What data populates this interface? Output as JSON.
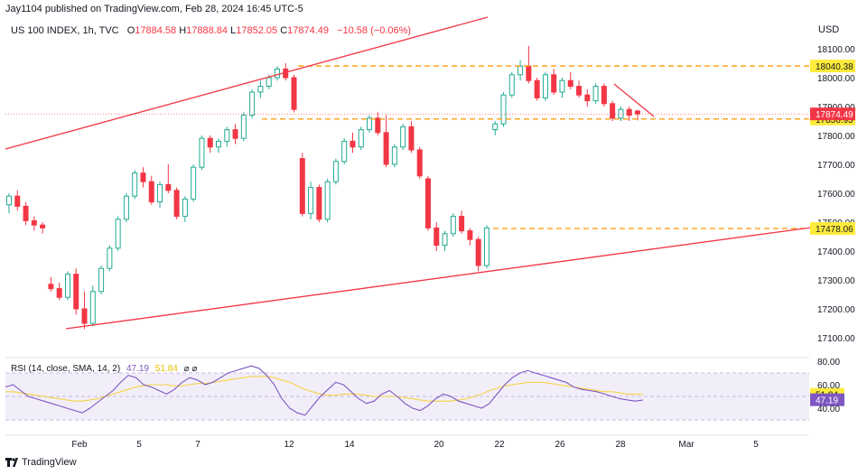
{
  "header": {
    "publisher": "Jay1104 published on TradingView.com, Feb 28, 2024 16:45 UTC-5",
    "symbol": "US 100 INDEX, 1h, TVC",
    "open_label": "O",
    "open": "17884.58",
    "high_label": "H",
    "high": "17888.84",
    "low_label": "L",
    "low": "17852.05",
    "close_label": "C",
    "close": "17874.49",
    "change": "−10.58 (−0.06%)"
  },
  "currency": "USD",
  "rsi_legend": {
    "label": "RSI (14, close, SMA, 14, 2)",
    "rsi_value": "47.19",
    "sma_value": "51.84",
    "icons": "⌀ ⌀"
  },
  "footer": {
    "brand": "TradingView"
  },
  "colors": {
    "up": "#22ab94",
    "down": "#f23645",
    "trend": "#f23645",
    "level": "#ff9800",
    "rsi": "#7e57c2",
    "rsi_ma": "#f7d245",
    "price_tag": "#f23645",
    "level_tag": "#ffeb3b"
  },
  "chart_data": {
    "type": "candlestick",
    "timeframe": "1h",
    "x_tick_labels": [
      "Feb",
      "5",
      "7",
      "12",
      "14",
      "20",
      "22",
      "26",
      "28",
      "Mar",
      "5"
    ],
    "y_ticks": [
      "18100.00",
      "18000.00",
      "17900.00",
      "17800.00",
      "17700.00",
      "17600.00",
      "17500.00",
      "17400.00",
      "17300.00",
      "17200.00",
      "17100.00"
    ],
    "ylim": [
      17050,
      18170
    ],
    "last_price": 17874.49,
    "candles_ohlc": [
      [
        17560,
        17600,
        17530,
        17590
      ],
      [
        17590,
        17610,
        17540,
        17555
      ],
      [
        17555,
        17570,
        17490,
        17505
      ],
      [
        17505,
        17520,
        17470,
        17490
      ],
      [
        17490,
        17500,
        17460,
        17480
      ],
      [
        17285,
        17310,
        17260,
        17270
      ],
      [
        17270,
        17290,
        17230,
        17240
      ],
      [
        17240,
        17330,
        17230,
        17320
      ],
      [
        17320,
        17340,
        17180,
        17200
      ],
      [
        17200,
        17260,
        17130,
        17150
      ],
      [
        17150,
        17280,
        17140,
        17260
      ],
      [
        17260,
        17350,
        17250,
        17340
      ],
      [
        17340,
        17420,
        17330,
        17410
      ],
      [
        17410,
        17520,
        17400,
        17510
      ],
      [
        17510,
        17600,
        17500,
        17590
      ],
      [
        17590,
        17680,
        17580,
        17670
      ],
      [
        17670,
        17690,
        17620,
        17640
      ],
      [
        17640,
        17660,
        17560,
        17570
      ],
      [
        17570,
        17640,
        17550,
        17630
      ],
      [
        17630,
        17700,
        17600,
        17610
      ],
      [
        17610,
        17620,
        17510,
        17520
      ],
      [
        17520,
        17590,
        17500,
        17580
      ],
      [
        17580,
        17700,
        17570,
        17690
      ],
      [
        17690,
        17800,
        17680,
        17790
      ],
      [
        17790,
        17800,
        17740,
        17760
      ],
      [
        17760,
        17790,
        17740,
        17780
      ],
      [
        17780,
        17830,
        17760,
        17820
      ],
      [
        17820,
        17840,
        17770,
        17790
      ],
      [
        17790,
        17880,
        17780,
        17870
      ],
      [
        17870,
        17960,
        17860,
        17950
      ],
      [
        17950,
        17990,
        17930,
        17970
      ],
      [
        17970,
        18010,
        17960,
        18000
      ],
      [
        18000,
        18040,
        17990,
        18030
      ],
      [
        18030,
        18050,
        17990,
        18000
      ],
      [
        18000,
        18010,
        17880,
        17890
      ],
      [
        17720,
        17740,
        17520,
        17530
      ],
      [
        17530,
        17640,
        17510,
        17620
      ],
      [
        17620,
        17630,
        17500,
        17510
      ],
      [
        17510,
        17650,
        17500,
        17640
      ],
      [
        17640,
        17720,
        17630,
        17710
      ],
      [
        17710,
        17790,
        17700,
        17780
      ],
      [
        17780,
        17810,
        17740,
        17760
      ],
      [
        17760,
        17830,
        17750,
        17820
      ],
      [
        17820,
        17870,
        17810,
        17860
      ],
      [
        17860,
        17880,
        17800,
        17810
      ],
      [
        17810,
        17870,
        17690,
        17700
      ],
      [
        17700,
        17770,
        17690,
        17760
      ],
      [
        17760,
        17840,
        17750,
        17830
      ],
      [
        17830,
        17850,
        17740,
        17750
      ],
      [
        17750,
        17760,
        17650,
        17660
      ],
      [
        17650,
        17660,
        17470,
        17480
      ],
      [
        17480,
        17500,
        17400,
        17420
      ],
      [
        17420,
        17470,
        17400,
        17460
      ],
      [
        17460,
        17530,
        17450,
        17520
      ],
      [
        17520,
        17540,
        17460,
        17470
      ],
      [
        17470,
        17480,
        17420,
        17440
      ],
      [
        17440,
        17450,
        17330,
        17350
      ],
      [
        17350,
        17490,
        17340,
        17480
      ],
      [
        17820,
        17850,
        17800,
        17840
      ],
      [
        17840,
        17950,
        17830,
        17940
      ],
      [
        17940,
        18020,
        17930,
        18010
      ],
      [
        18010,
        18060,
        17990,
        18040
      ],
      [
        18040,
        18110,
        17980,
        17990
      ],
      [
        17990,
        18000,
        17920,
        17930
      ],
      [
        17930,
        18020,
        17920,
        18010
      ],
      [
        18010,
        18030,
        17940,
        17950
      ],
      [
        17950,
        18000,
        17930,
        17990
      ],
      [
        17990,
        18020,
        17960,
        17970
      ],
      [
        17970,
        17990,
        17930,
        17940
      ],
      [
        17940,
        17960,
        17900,
        17920
      ],
      [
        17920,
        17980,
        17910,
        17970
      ],
      [
        17970,
        17980,
        17900,
        17910
      ],
      [
        17910,
        17920,
        17850,
        17860
      ],
      [
        17860,
        17900,
        17850,
        17890
      ],
      [
        17890,
        17900,
        17850,
        17870
      ],
      [
        17884.58,
        17888.84,
        17852.05,
        17874.49
      ]
    ],
    "horizontal_levels": [
      {
        "price": 18040.38,
        "label": "18040.38"
      },
      {
        "price": 17856.95,
        "label": "17856.95"
      },
      {
        "price": 17478.06,
        "label": "17478.06"
      }
    ],
    "rsi": {
      "ylim": [
        20,
        90
      ],
      "ticks": [
        "80.00",
        "60.00",
        "40.00"
      ],
      "band": [
        30,
        70
      ],
      "rsi_last": 47.19,
      "sma_last": 51.84,
      "rsi_values": [
        58,
        60,
        55,
        50,
        48,
        46,
        44,
        42,
        40,
        38,
        36,
        40,
        45,
        50,
        55,
        62,
        68,
        66,
        60,
        58,
        55,
        52,
        56,
        62,
        66,
        64,
        60,
        62,
        66,
        70,
        72,
        74,
        76,
        74,
        68,
        60,
        48,
        40,
        36,
        34,
        42,
        50,
        56,
        62,
        60,
        54,
        48,
        44,
        46,
        52,
        55,
        50,
        44,
        40,
        38,
        42,
        48,
        52,
        50,
        46,
        44,
        42,
        40,
        44,
        52,
        60,
        66,
        70,
        72,
        70,
        68,
        66,
        64,
        62,
        58,
        56,
        55,
        54,
        52,
        50,
        48,
        47,
        46,
        47
      ],
      "sma_values": [
        54,
        54,
        53,
        52,
        51,
        50,
        49,
        48,
        47,
        46,
        46,
        47,
        48,
        50,
        52,
        54,
        56,
        58,
        59,
        60,
        60,
        60,
        59,
        59,
        60,
        61,
        61,
        62,
        63,
        64,
        65,
        66,
        67,
        67,
        67,
        66,
        64,
        62,
        59,
        56,
        54,
        52,
        51,
        51,
        52,
        52,
        52,
        51,
        50,
        50,
        50,
        50,
        49,
        48,
        47,
        46,
        46,
        46,
        46,
        47,
        48,
        50,
        52,
        55,
        57,
        59,
        60,
        61,
        62,
        62,
        62,
        61,
        60,
        59,
        58,
        57,
        56,
        55,
        54,
        54,
        53,
        52,
        52,
        51.84
      ]
    }
  }
}
